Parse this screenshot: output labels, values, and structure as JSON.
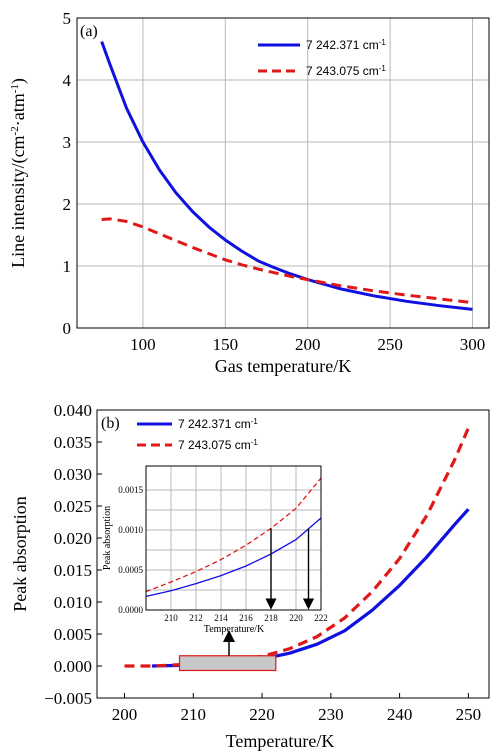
{
  "colors": {
    "blue": "#1010e0",
    "red": "#e01818",
    "highlight_fill": "#c8c8c8"
  },
  "chart_data": [
    {
      "panel": "(a)",
      "type": "line",
      "xlabel": "Gas temperature/K",
      "ylabel_parts": [
        "Line intensity/(cm",
        "-2",
        "·atm",
        "-1",
        ")"
      ],
      "xlim": [
        60,
        310
      ],
      "ylim": [
        0,
        5
      ],
      "x_ticks": [
        100,
        150,
        200,
        250,
        300
      ],
      "y_ticks": [
        0,
        1,
        2,
        3,
        4,
        5
      ],
      "legend_position": "top-right",
      "grid": true,
      "series": [
        {
          "name": "7 242.371 cm-1",
          "name_main": "7 242.371 cm",
          "name_sup": "-1",
          "style": "solid",
          "x": [
            75,
            80,
            90,
            100,
            110,
            120,
            130,
            140,
            150,
            160,
            170,
            180,
            190,
            200,
            220,
            240,
            260,
            280,
            300
          ],
          "y": [
            4.62,
            4.25,
            3.55,
            3.0,
            2.55,
            2.18,
            1.88,
            1.63,
            1.42,
            1.24,
            1.08,
            0.97,
            0.87,
            0.78,
            0.63,
            0.52,
            0.43,
            0.36,
            0.3
          ]
        },
        {
          "name": "7 243.075 cm-1",
          "name_main": "7 243.075 cm",
          "name_sup": "-1",
          "style": "dashed",
          "x": [
            75,
            80,
            90,
            100,
            110,
            120,
            130,
            140,
            150,
            160,
            170,
            180,
            190,
            200,
            220,
            240,
            260,
            280,
            300
          ],
          "y": [
            1.75,
            1.76,
            1.72,
            1.63,
            1.52,
            1.41,
            1.3,
            1.2,
            1.1,
            1.02,
            0.95,
            0.89,
            0.83,
            0.78,
            0.68,
            0.6,
            0.53,
            0.47,
            0.41
          ]
        }
      ]
    },
    {
      "panel": "(b)",
      "type": "line",
      "xlabel": "Temperature/K",
      "ylabel": "Peak absorption",
      "xlim": [
        196,
        253
      ],
      "ylim": [
        -0.005,
        0.04
      ],
      "x_ticks": [
        200,
        210,
        220,
        230,
        240,
        250
      ],
      "y_ticks": [
        -0.005,
        0.0,
        0.005,
        0.01,
        0.015,
        0.02,
        0.025,
        0.03,
        0.035,
        0.04
      ],
      "y_tick_labels": [
        "−0.005",
        "0.000",
        "0.005",
        "0.010",
        "0.015",
        "0.020",
        "0.025",
        "0.030",
        "0.035",
        "0.040"
      ],
      "legend_position": "top-left",
      "grid": false,
      "series": [
        {
          "name": "7 242.371 cm-1",
          "name_main": "7 242.371 cm",
          "name_sup": "-1",
          "style": "solid",
          "x": [
            204,
            208,
            212,
            216,
            220,
            224,
            228,
            232,
            236,
            240,
            244,
            248,
            250
          ],
          "y": [
            0.0,
            0.0001,
            0.0003,
            0.0006,
            0.0011,
            0.002,
            0.0034,
            0.0055,
            0.0087,
            0.0126,
            0.0171,
            0.0221,
            0.0245
          ]
        },
        {
          "name": "7 243.075 cm-1",
          "name_main": "7 243.075 cm",
          "name_sup": "-1",
          "style": "dashed",
          "x": [
            200,
            204,
            208,
            212,
            216,
            220,
            224,
            228,
            232,
            236,
            240,
            244,
            248,
            250
          ],
          "y": [
            0.0,
            0.0,
            0.0002,
            0.0005,
            0.0009,
            0.0015,
            0.0027,
            0.0046,
            0.0075,
            0.0116,
            0.0168,
            0.0236,
            0.0322,
            0.0372
          ]
        }
      ],
      "highlight_region": {
        "x": [
          208,
          222
        ],
        "y": [
          -0.0007,
          0.0016
        ]
      },
      "inset": {
        "xlabel": "Temperature/K",
        "ylabel": "Peak absorption",
        "xlim": [
          208,
          222
        ],
        "ylim": [
          0,
          0.0018
        ],
        "x_ticks": [
          210,
          212,
          214,
          216,
          218,
          220,
          222
        ],
        "y_ticks": [
          0.0,
          0.0005,
          0.001,
          0.0015
        ],
        "y_tick_labels": [
          "0.0000",
          "0.0005",
          "0.0010",
          "0.0015"
        ],
        "grid": true,
        "series": [
          {
            "style": "solid",
            "x": [
              208,
              210,
              212,
              214,
              216,
              218,
              220,
              222
            ],
            "y": [
              0.00017,
              0.00024,
              0.00033,
              0.00043,
              0.00055,
              0.0007,
              0.00088,
              0.00115
            ]
          },
          {
            "style": "dashed",
            "x": [
              208,
              210,
              212,
              214,
              216,
              218,
              220,
              222
            ],
            "y": [
              0.00023,
              0.00035,
              0.00048,
              0.00063,
              0.00081,
              0.00102,
              0.00127,
              0.00165
            ]
          }
        ],
        "arrows_x": [
          218,
          221
        ]
      }
    }
  ]
}
